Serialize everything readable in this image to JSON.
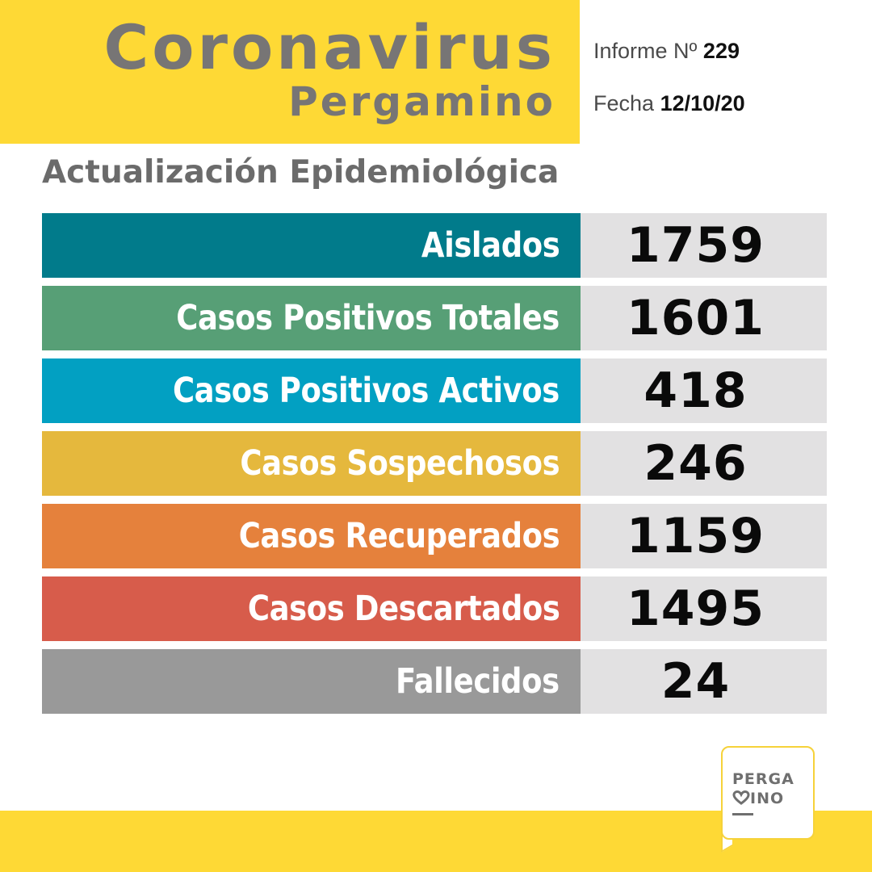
{
  "header": {
    "title": "Coronavirus",
    "subtitle": "Pergamino",
    "report_label": "Informe Nº",
    "report_number": "229",
    "date_label": "Fecha",
    "date_value": "12/10/20"
  },
  "section_title": "Actualización Epidemiológica",
  "stats": [
    {
      "label": "Aislados",
      "value": "1759",
      "color": "#017b8b"
    },
    {
      "label": "Casos Positivos Totales",
      "value": "1601",
      "color": "#579f76"
    },
    {
      "label": "Casos Positivos Activos",
      "value": "418",
      "color": "#02a0c2"
    },
    {
      "label": "Casos Sospechosos",
      "value": "246",
      "color": "#e5b83d"
    },
    {
      "label": "Casos Recuperados",
      "value": "1159",
      "color": "#e5813c"
    },
    {
      "label": "Casos Descartados",
      "value": "1495",
      "color": "#d75c4b"
    },
    {
      "label": "Fallecidos",
      "value": "24",
      "color": "#999999"
    }
  ],
  "logo": {
    "line1": "PERGA",
    "line2": "INO",
    "icon": "heart-icon"
  },
  "colors": {
    "brand_yellow": "#fed935",
    "title_gray": "#777575",
    "value_background": "#e2e1e2"
  }
}
